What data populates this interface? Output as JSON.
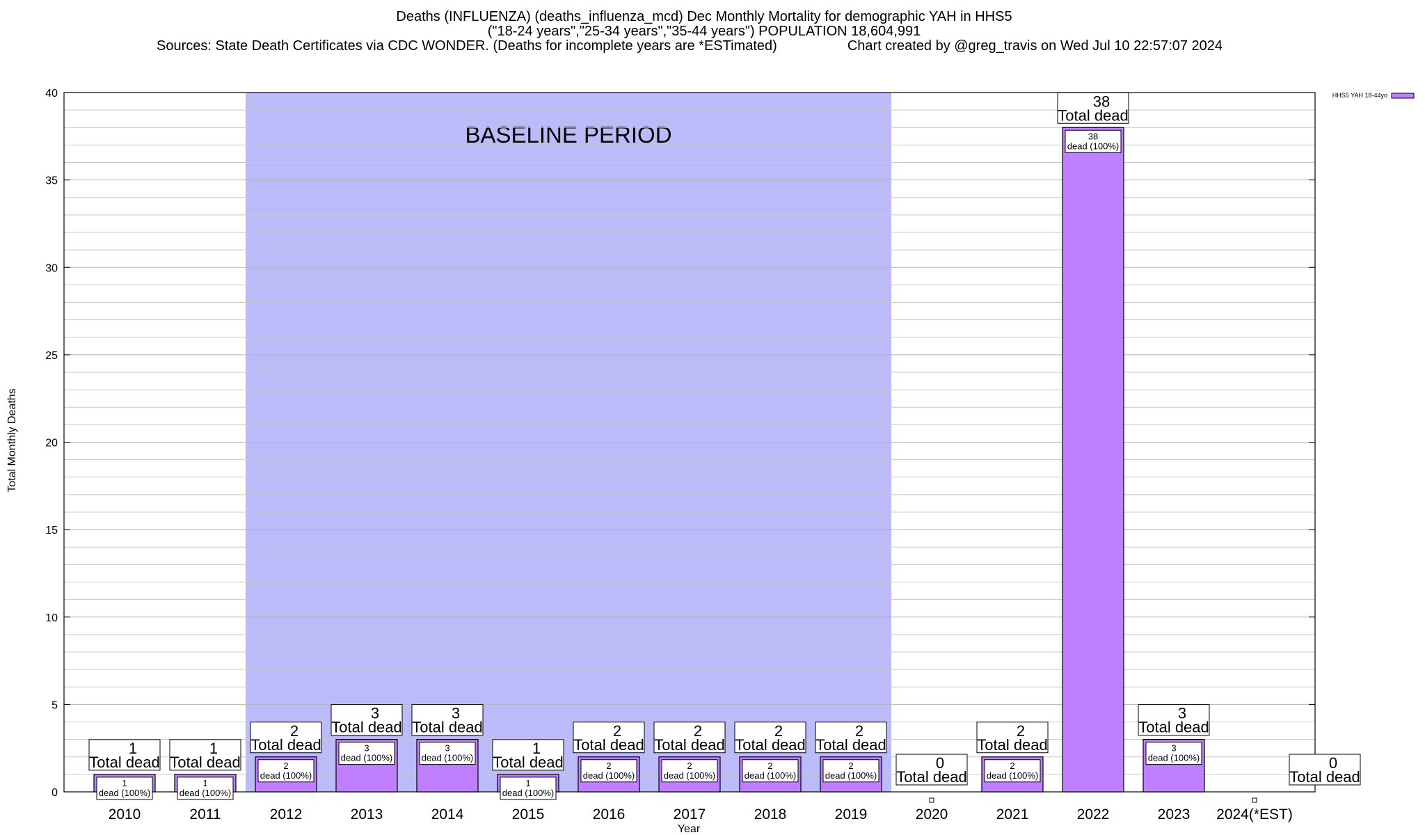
{
  "chart_data": {
    "type": "bar",
    "title_lines": [
      "Deaths (INFLUENZA) (deaths_influenza_mcd) Dec Monthly Mortality for demographic YAH in HHS5",
      "(\"18-24 years\",\"25-34 years\",\"35-44 years\") POPULATION 18,604,991",
      "Sources: State Death Certificates via CDC WONDER. (Deaths for incomplete years are *ESTimated)",
      "Chart created by @greg_travis on Wed Jul 10 22:57:07 2024"
    ],
    "xlabel": "Year",
    "ylabel": "Total Monthly Deaths",
    "ylim": [
      0,
      40
    ],
    "y_ticks": [
      0,
      5,
      10,
      15,
      20,
      25,
      30,
      35,
      40
    ],
    "grid": true,
    "categories": [
      "2010",
      "2011",
      "2012",
      "2013",
      "2014",
      "2015",
      "2016",
      "2017",
      "2018",
      "2019",
      "2020",
      "2021",
      "2022",
      "2023",
      "2024(*EST)"
    ],
    "series": [
      {
        "name": "HHS5 YAH 18-44yo",
        "color": "#bf7fff",
        "values": [
          1,
          1,
          2,
          3,
          3,
          1,
          2,
          2,
          2,
          2,
          0,
          2,
          38,
          3,
          0
        ]
      }
    ],
    "total_label_suffix": "Total dead",
    "inner_labels": [
      "1\ndead (100%)",
      "1\ndead (100%)",
      "2\ndead (100%)",
      "3\ndead (100%)",
      "3\ndead (100%)",
      "1\ndead (100%)",
      "2\ndead (100%)",
      "2\ndead (100%)",
      "2\ndead (100%)",
      "2\ndead (100%)",
      "",
      "2\ndead (100%)",
      "38\ndead (100%)",
      "3\ndead (100%)",
      ""
    ],
    "baseline": {
      "label": "BASELINE PERIOD",
      "from": "2012",
      "to": "2019",
      "color": "#bbbbf9"
    },
    "legend_position": "top-right"
  }
}
